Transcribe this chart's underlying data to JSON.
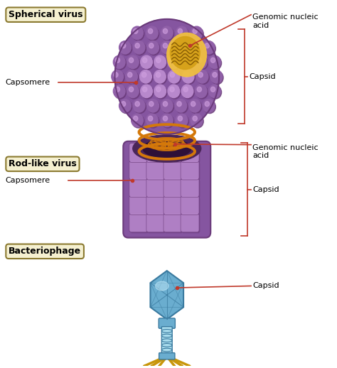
{
  "background_color": "#ffffff",
  "label_color": "#1a1a1a",
  "annotation_line_color": "#c0392b",
  "box_bg_color": "#f5f0d0",
  "box_border_color": "#8b7a30",
  "virus_purple_dark": "#6a3a7a",
  "virus_purple_light": "#b888cc",
  "virus_purple_mid": "#9060a8",
  "virus_purple_body": "#8555a0",
  "gold_color": "#d4a017",
  "gold_light": "#f0c040",
  "orange_ring": "#d4780a",
  "phage_blue": "#6aadcf",
  "phage_blue_dark": "#3a7a9f",
  "phage_blue_light": "#aaddee",
  "phage_gold": "#c8960a",
  "labels": {
    "spherical": "Spherical virus",
    "rod": "Rod-like virus",
    "bacteriophage": "Bacteriophage",
    "genomic_nucleic_acid": "Genomic nucleic\nacid",
    "capsid": "Capsid",
    "capsomere": "Capsomere"
  },
  "fig_width": 4.74,
  "fig_height": 5.18,
  "dpi": 100
}
